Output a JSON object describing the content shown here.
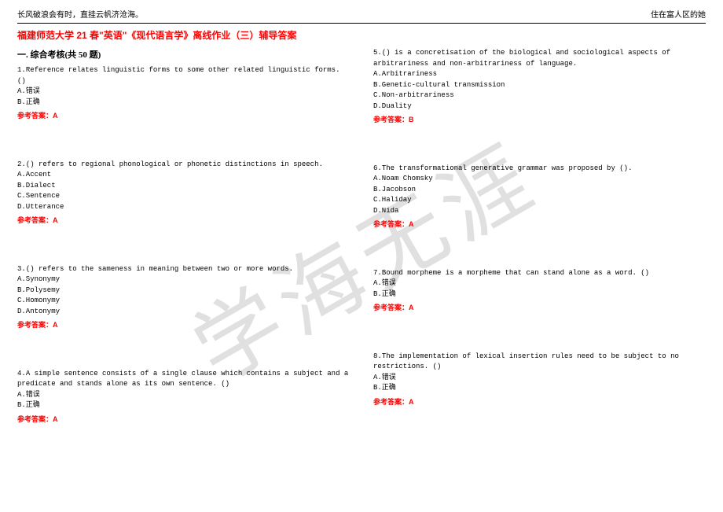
{
  "header_left": "长风破浪会有时，直挂云帆济沧海。",
  "header_right": "住在富人区的她",
  "main_title": "福建师范大学 21 春\"英语\"《现代语言学》离线作业（三）辅导答案",
  "section_title": "一. 综合考核(共 50 题)",
  "watermark": "学海无涯",
  "answer_label_prefix": "参考答案：",
  "left_questions": [
    {
      "num": "1.",
      "text": "Reference relates linguistic forms to some other related linguistic forms. ()",
      "options": [
        "A.错误",
        "B.正确"
      ],
      "answer": "A"
    },
    {
      "num": "2.",
      "text": "() refers to regional phonological or phonetic distinctions in speech.",
      "options": [
        "A.Accent",
        "B.Dialect",
        "C.Sentence",
        "D.Utterance"
      ],
      "answer": "A"
    },
    {
      "num": "3.",
      "text": "() refers to the sameness in meaning between two or more words.",
      "options": [
        "A.Synonymy",
        "B.Polysemy",
        "C.Homonymy",
        "D.Antonymy"
      ],
      "answer": "A"
    },
    {
      "num": "4.",
      "text": "A simple sentence consists of a single clause which contains a subject and a predicate and stands alone as its own sentence. ()",
      "options": [
        "A.错误",
        "B.正确"
      ],
      "answer": "A"
    }
  ],
  "right_questions": [
    {
      "num": "5.",
      "text": "() is a concretisation of the biological and sociological aspects of arbitrariness and non-arbitrariness of language.",
      "options": [
        "A.Arbitrariness",
        "B.Genetic-cultural transmission",
        "C.Non-arbitrariness",
        "D.Duality"
      ],
      "answer": "B"
    },
    {
      "num": "6.",
      "text": "The transformational generative grammar was proposed by ().",
      "options": [
        "A.Noam Chomsky",
        "B.Jacobson",
        "C.Haliday",
        "D.Nida"
      ],
      "answer": "A"
    },
    {
      "num": "7.",
      "text": "Bound morpheme is a morpheme that can stand alone as a word. ()",
      "options": [
        "A.错误",
        "B.正确"
      ],
      "answer": "A"
    },
    {
      "num": "8.",
      "text": "The implementation of lexical insertion rules need to be subject to no restrictions. ()",
      "options": [
        "A.错误",
        "B.正确"
      ],
      "answer": "A"
    }
  ]
}
